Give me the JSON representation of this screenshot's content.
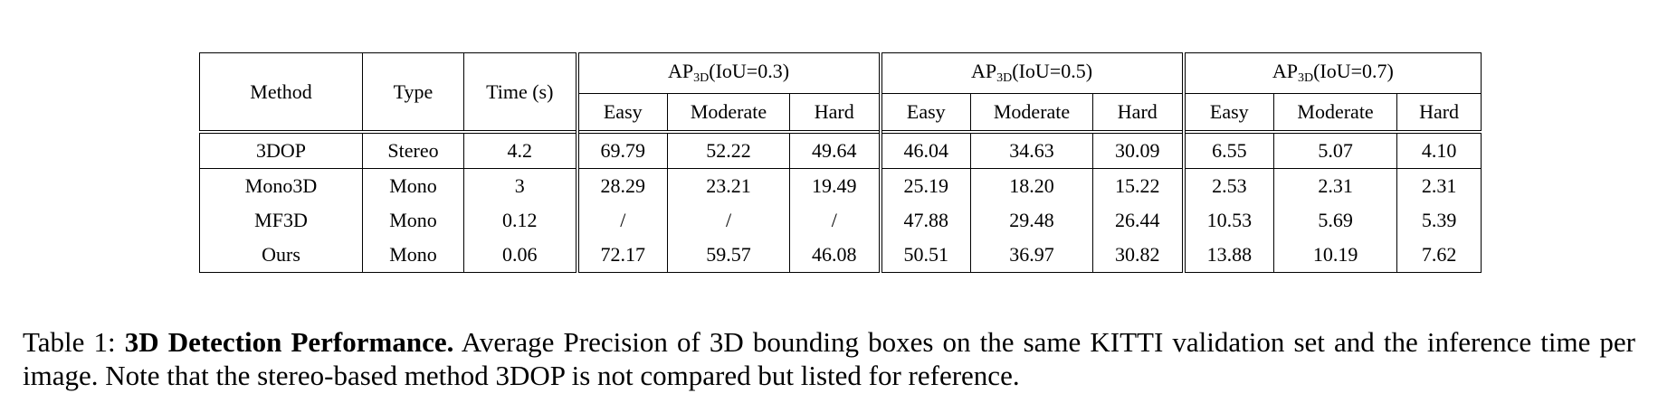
{
  "table": {
    "headers": {
      "method": "Method",
      "type": "Type",
      "time": "Time (s)",
      "groups": [
        {
          "prefix": "AP",
          "sub": "3D",
          "suffix": "(IoU=0.3)"
        },
        {
          "prefix": "AP",
          "sub": "3D",
          "suffix": "(IoU=0.5)"
        },
        {
          "prefix": "AP",
          "sub": "3D",
          "suffix": "(IoU=0.7)"
        }
      ],
      "difficulty": [
        "Easy",
        "Moderate",
        "Hard"
      ]
    },
    "rows": [
      {
        "method": "3DOP",
        "type": "Stereo",
        "time": "4.2",
        "values": [
          "69.79",
          "52.22",
          "49.64",
          "46.04",
          "34.63",
          "30.09",
          "6.55",
          "5.07",
          "4.10"
        ]
      },
      {
        "method": "Mono3D",
        "type": "Mono",
        "time": "3",
        "values": [
          "28.29",
          "23.21",
          "19.49",
          "25.19",
          "18.20",
          "15.22",
          "2.53",
          "2.31",
          "2.31"
        ]
      },
      {
        "method": "MF3D",
        "type": "Mono",
        "time": "0.12",
        "values": [
          "/",
          "/",
          "/",
          "47.88",
          "29.48",
          "26.44",
          "10.53",
          "5.69",
          "5.39"
        ]
      },
      {
        "method": "Ours",
        "type": "Mono",
        "time": "0.06",
        "values": [
          "72.17",
          "59.57",
          "46.08",
          "50.51",
          "36.97",
          "30.82",
          "13.88",
          "10.19",
          "7.62"
        ]
      }
    ]
  },
  "caption": {
    "label": "Table 1: ",
    "title": "3D Detection Performance.",
    "text": " Average Precision of 3D bounding boxes on the same KITTI validation set and the inference time per image. Note that the stereo-based method 3DOP is not compared but listed for reference."
  }
}
